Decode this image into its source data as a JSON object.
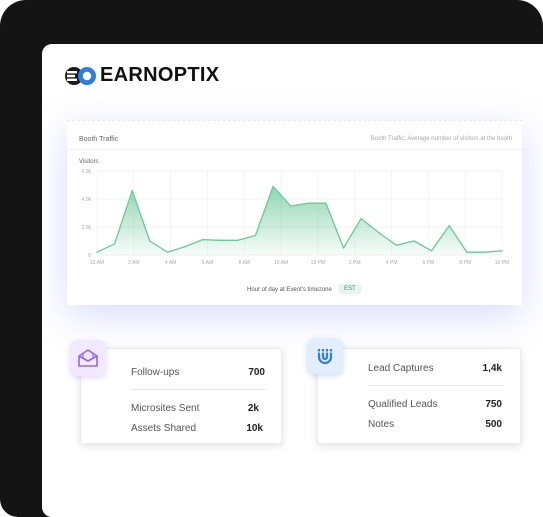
{
  "brand": {
    "name": "EARNOPTIX"
  },
  "chart": {
    "title": "Booth Traffic",
    "subtitle": "Booth Traffic: Average number of visitors at the booth",
    "timezone_label": "EST"
  },
  "chart_data": {
    "type": "area",
    "ylabel": "Visitors",
    "xlabel": "Hour of day at Event's timezone",
    "ylim": [
      0,
      6000
    ],
    "y_ticks": [
      "6.0k",
      "4.0k",
      "2.0k",
      "0"
    ],
    "x_ticks": [
      "12 AM",
      "2 AM",
      "4 AM",
      "6 AM",
      "8 AM",
      "10 AM",
      "12 PM",
      "2 PM",
      "4 PM",
      "6 PM",
      "8 PM",
      "10 PM"
    ],
    "x": [
      0,
      1,
      2,
      3,
      4,
      5,
      6,
      7,
      8,
      9,
      10,
      11,
      12,
      13,
      14,
      15,
      16,
      17,
      18,
      19,
      20,
      21,
      22,
      23
    ],
    "series": [
      {
        "values": [
          200,
          800,
          4600,
          1000,
          200,
          600,
          1100,
          1050,
          1050,
          1400,
          4900,
          3500,
          3700,
          3700,
          500,
          2600,
          1600,
          700,
          1000,
          300,
          2100,
          200,
          200,
          300
        ]
      }
    ],
    "grid": true,
    "color": "#6cc89a"
  },
  "card_left": {
    "icon": "envelope-icon",
    "rows": [
      {
        "label": "Follow-ups",
        "value": "700"
      },
      {
        "label": "Microsites Sent",
        "value": "2k"
      },
      {
        "label": "Assets Shared",
        "value": "10k"
      }
    ]
  },
  "card_right": {
    "icon": "magnet-icon",
    "rows": [
      {
        "label": "Lead Captures",
        "value": "1,4k"
      },
      {
        "label": "Qualified Leads",
        "value": "750"
      },
      {
        "label": "Notes",
        "value": "500"
      }
    ]
  },
  "colors": {
    "accent_blue": "#2f7de1",
    "chart_green": "#6cc89a",
    "icon_purple": "#9a66e8"
  }
}
